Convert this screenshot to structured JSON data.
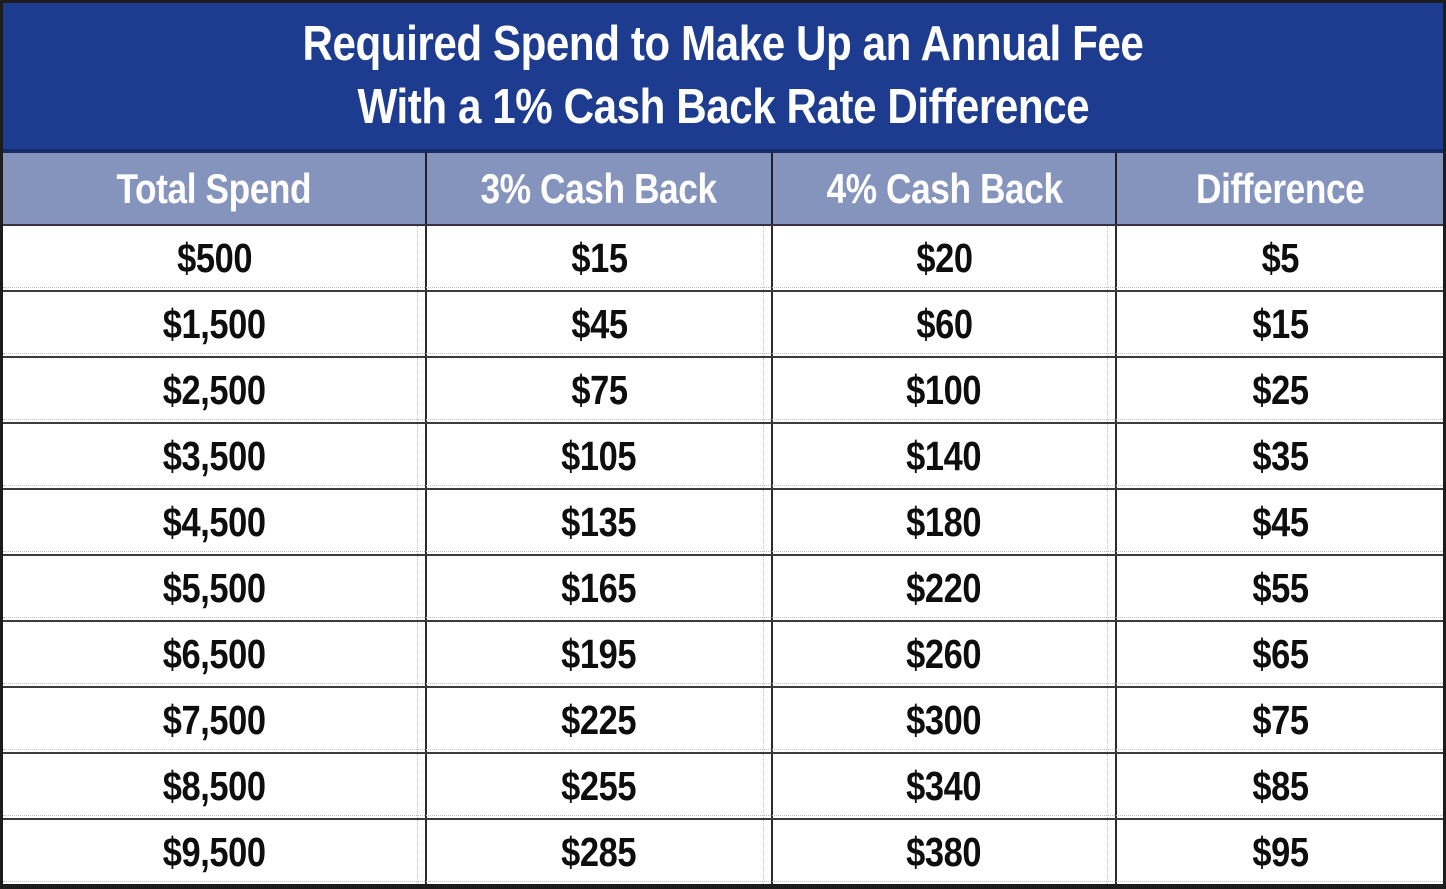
{
  "title": {
    "line1": "Required Spend to Make Up an Annual Fee",
    "line2": "With a 1% Cash Back Rate Difference"
  },
  "colors": {
    "title_background": "#1e3c8f",
    "header_background": "#8594bd",
    "title_text": "#ffffff",
    "header_text": "#ffffff",
    "cell_text": "#0e0e0e",
    "grid_line": "#3b3b3b",
    "outer_border": "#1c1c1c"
  },
  "chart_data": {
    "type": "table",
    "title": "Required Spend to Make Up an Annual Fee With a 1% Cash Back Rate Difference",
    "columns": [
      "Total Spend",
      "3% Cash Back",
      "4% Cash Back",
      "Difference"
    ],
    "rows": [
      [
        "$500",
        "$15",
        "$20",
        "$5"
      ],
      [
        "$1,500",
        "$45",
        "$60",
        "$15"
      ],
      [
        "$2,500",
        "$75",
        "$100",
        "$25"
      ],
      [
        "$3,500",
        "$105",
        "$140",
        "$35"
      ],
      [
        "$4,500",
        "$135",
        "$180",
        "$45"
      ],
      [
        "$5,500",
        "$165",
        "$220",
        "$55"
      ],
      [
        "$6,500",
        "$195",
        "$260",
        "$65"
      ],
      [
        "$7,500",
        "$225",
        "$300",
        "$75"
      ],
      [
        "$8,500",
        "$255",
        "$340",
        "$85"
      ],
      [
        "$9,500",
        "$285",
        "$380",
        "$95"
      ]
    ]
  }
}
